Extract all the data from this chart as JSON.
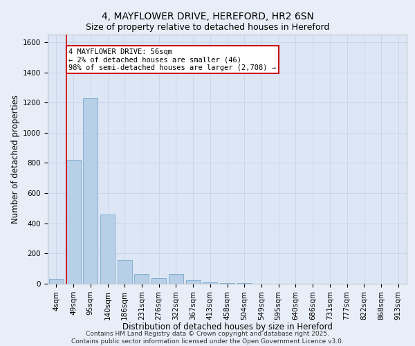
{
  "title_line1": "4, MAYFLOWER DRIVE, HEREFORD, HR2 6SN",
  "title_line2": "Size of property relative to detached houses in Hereford",
  "xlabel": "Distribution of detached houses by size in Hereford",
  "ylabel": "Number of detached properties",
  "categories": [
    "4sqm",
    "49sqm",
    "95sqm",
    "140sqm",
    "186sqm",
    "231sqm",
    "276sqm",
    "322sqm",
    "367sqm",
    "413sqm",
    "458sqm",
    "504sqm",
    "549sqm",
    "595sqm",
    "640sqm",
    "686sqm",
    "731sqm",
    "777sqm",
    "822sqm",
    "868sqm",
    "913sqm"
  ],
  "values": [
    30,
    820,
    1230,
    460,
    155,
    65,
    35,
    65,
    22,
    8,
    5,
    3,
    2,
    1,
    1,
    1,
    0,
    0,
    0,
    0,
    0
  ],
  "bar_color": "#b8cfe8",
  "bar_edge_color": "#6a9ec5",
  "annotation_text": "4 MAYFLOWER DRIVE: 56sqm\n← 2% of detached houses are smaller (46)\n98% of semi-detached houses are larger (2,708) →",
  "annotation_box_color": "#ffffff",
  "annotation_box_edge_color": "#cc0000",
  "vline_color": "#cc0000",
  "ylim": [
    0,
    1650
  ],
  "yticks": [
    0,
    200,
    400,
    600,
    800,
    1000,
    1200,
    1400,
    1600
  ],
  "grid_color": "#c8d4e8",
  "bg_color": "#e8eef7",
  "plot_bg_color": "#dce6f5",
  "footer_text": "Contains HM Land Registry data © Crown copyright and database right 2025.\nContains public sector information licensed under the Open Government Licence v3.0.",
  "title_fontsize": 10,
  "subtitle_fontsize": 9,
  "axis_label_fontsize": 8.5,
  "tick_fontsize": 7.5,
  "annotation_fontsize": 7.5,
  "footer_fontsize": 6.5
}
